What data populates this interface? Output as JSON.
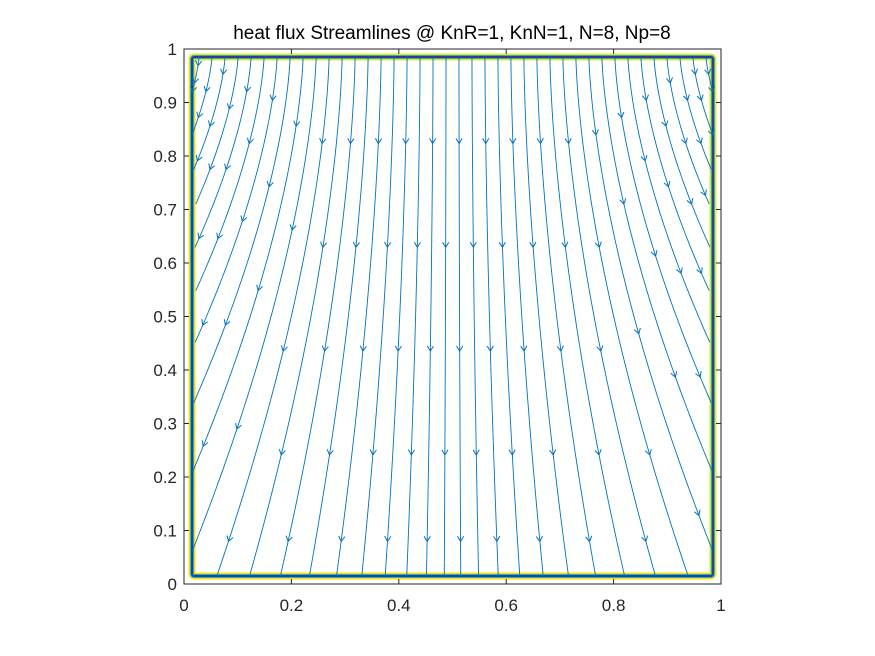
{
  "chart_data": {
    "type": "streamline",
    "title": "heat flux Streamlines @ KnR=1, KnN=1, N=8, Np=8",
    "xlabel": "",
    "ylabel": "",
    "xlim": [
      0,
      1
    ],
    "ylim": [
      0,
      1
    ],
    "x_ticks": [
      "0",
      "0.2",
      "0.4",
      "0.6",
      "0.8",
      "1"
    ],
    "y_ticks": [
      "0",
      "0.1",
      "0.2",
      "0.3",
      "0.4",
      "0.5",
      "0.6",
      "0.7",
      "0.8",
      "0.9",
      "1"
    ],
    "grid": false,
    "flow_direction": "downward, diverging outward from center toward left and right walls",
    "streamline_count": 40,
    "series": [
      {
        "values": [
          0.015,
          0.985
        ],
        "note": "domain boundary"
      }
    ],
    "colors": {
      "streamline": "#0072BD",
      "boundary_outer": "#F2E31C",
      "boundary_mid": "#2BB5A0",
      "boundary_inner": "#2A3BA8",
      "axes": "#262626"
    }
  }
}
